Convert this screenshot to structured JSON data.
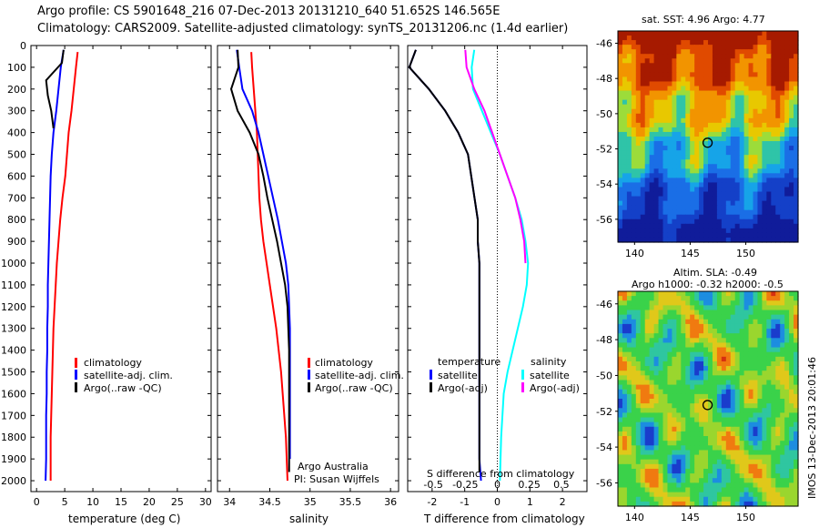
{
  "header": {
    "line1": "Argo profile: CS 5901648_216 07-Dec-2013 20131210_640 51.652S 146.565E",
    "line2": "Climatology: CARS2009. Satellite-adjusted climatology: synTS_20131206.nc (1.4d earlier)"
  },
  "colors": {
    "climatology": "#ff0000",
    "satellite": "#0000ff",
    "argo": "#000000",
    "argo_adj_salinity": "#ff00ff",
    "satellite_salinity": "#00ffff"
  },
  "panels": {
    "temperature": {
      "xlabel": "temperature (deg C)",
      "xticks": [
        "0",
        "5",
        "10",
        "15",
        "20",
        "25",
        "30"
      ],
      "legend": [
        "climatology",
        "satellite-adj. clim.",
        "Argo(..raw -QC)"
      ]
    },
    "salinity": {
      "xlabel": "salinity",
      "xticks": [
        "34",
        "34.5",
        "35",
        "35.5",
        "36"
      ],
      "legend": [
        "climatology",
        "satellite-adj. clim.",
        "Argo(..raw -QC)"
      ],
      "credit1": "Argo Australia",
      "credit2": "PI: Susan Wijffels"
    },
    "difference": {
      "xlabel": "T difference from climatology",
      "top_label": "S difference from climatology",
      "xticks_t": [
        "-2",
        "-1",
        "0",
        "1",
        "2"
      ],
      "xticks_s": [
        "-0.5",
        "-0.25",
        "0",
        "0.25",
        "0.5"
      ],
      "legend_t_title": "temperature",
      "legend_s_title": "salinity",
      "legend_t": [
        "satellite",
        "Argo(-adj)"
      ],
      "legend_s": [
        "satellite",
        "Argo(-adj)"
      ]
    },
    "depth_ticks": [
      "0",
      "100",
      "200",
      "300",
      "400",
      "500",
      "600",
      "700",
      "800",
      "900",
      "1000",
      "1100",
      "1200",
      "1300",
      "1400",
      "1500",
      "1600",
      "1700",
      "1800",
      "1900",
      "2000"
    ]
  },
  "maps": {
    "sst_title": "sat. SST: 4.96 Argo: 4.77",
    "sla_title1": "Altim. SLA: -0.49",
    "sla_title2": "Argo h1000: -0.32 h2000: -0.5",
    "lat_ticks": [
      "-46",
      "-48",
      "-50",
      "-52",
      "-54",
      "-56"
    ],
    "lon_ticks": [
      "140",
      "145",
      "150"
    ],
    "stamp": "IMOS 13-Dec-2013 20:01:46"
  },
  "chart_data": [
    {
      "type": "line",
      "title": "",
      "xlabel": "temperature (deg C)",
      "ylabel": "",
      "xlim": [
        -1,
        31
      ],
      "ylim": [
        2050,
        0
      ],
      "series": [
        {
          "name": "climatology",
          "x": [
            7.3,
            7.0,
            6.6,
            6.2,
            5.7,
            5.4,
            5.1,
            4.6,
            4.2,
            3.9,
            3.6,
            3.4,
            3.2,
            3.0,
            2.9,
            2.8,
            2.7,
            2.6,
            2.5,
            2.5,
            2.5
          ],
          "y": [
            30,
            100,
            200,
            300,
            400,
            500,
            600,
            700,
            800,
            900,
            1000,
            1100,
            1200,
            1300,
            1400,
            1500,
            1600,
            1700,
            1800,
            1900,
            2000
          ]
        },
        {
          "name": "satellite-adj. clim.",
          "x": [
            4.8,
            4.3,
            3.9,
            3.5,
            3.0,
            2.7,
            2.5,
            2.4,
            2.3,
            2.2,
            2.1,
            2.0,
            2.0,
            1.9,
            1.9,
            1.8,
            1.8,
            1.7,
            1.7,
            1.7,
            1.6
          ],
          "y": [
            20,
            100,
            200,
            300,
            400,
            500,
            600,
            700,
            800,
            900,
            1000,
            1100,
            1200,
            1300,
            1400,
            1500,
            1600,
            1700,
            1800,
            1900,
            2000
          ]
        },
        {
          "name": "Argo(..raw -QC)",
          "x": [
            4.8,
            4.5,
            1.7,
            2.0,
            2.6,
            3.0
          ],
          "y": [
            20,
            80,
            160,
            230,
            300,
            380
          ]
        }
      ]
    },
    {
      "type": "line",
      "title": "",
      "xlabel": "salinity",
      "ylabel": "",
      "xlim": [
        33.85,
        36.1
      ],
      "ylim": [
        2050,
        0
      ],
      "series": [
        {
          "name": "climatology",
          "x": [
            34.27,
            34.28,
            34.3,
            34.32,
            34.34,
            34.35,
            34.36,
            34.37,
            34.39,
            34.42,
            34.46,
            34.5,
            34.54,
            34.58,
            34.61,
            34.64,
            34.66,
            34.68,
            34.7,
            34.71,
            34.72
          ],
          "y": [
            30,
            100,
            200,
            300,
            400,
            500,
            600,
            700,
            800,
            900,
            1000,
            1100,
            1200,
            1300,
            1400,
            1500,
            1600,
            1700,
            1800,
            1900,
            2000
          ]
        },
        {
          "name": "satellite-adj. clim.",
          "x": [
            34.09,
            34.12,
            34.16,
            34.28,
            34.36,
            34.42,
            34.48,
            34.54,
            34.6,
            34.65,
            34.7,
            34.73,
            34.74,
            34.75,
            34.75,
            34.75,
            34.75,
            34.75,
            34.75,
            34.75
          ],
          "y": [
            20,
            100,
            200,
            300,
            400,
            500,
            600,
            700,
            800,
            900,
            1000,
            1100,
            1200,
            1300,
            1400,
            1500,
            1600,
            1700,
            1800,
            1900
          ]
        },
        {
          "name": "Argo(..raw -QC)",
          "x": [
            34.1,
            34.11,
            34.02,
            34.1,
            34.25,
            34.36,
            34.42,
            34.47,
            34.53,
            34.59,
            34.64,
            34.69,
            34.72,
            34.73,
            34.74,
            34.74,
            34.74,
            34.74,
            34.74,
            34.74,
            34.74
          ],
          "y": [
            20,
            100,
            200,
            300,
            400,
            500,
            600,
            700,
            800,
            900,
            1000,
            1100,
            1200,
            1300,
            1400,
            1500,
            1600,
            1700,
            1800,
            1900,
            1960
          ]
        }
      ]
    },
    {
      "type": "line",
      "title": "",
      "xlabel": "T difference from climatology",
      "ylabel": "",
      "xlim": [
        -2.75,
        2.75
      ],
      "ylim": [
        2050,
        0
      ],
      "series": [
        {
          "name": "satellite",
          "x": [
            -2.5,
            -2.7,
            -2.1,
            -1.6,
            -1.2,
            -0.9,
            -0.8,
            -0.7,
            -0.6,
            -0.6,
            -0.55,
            -0.55,
            -0.55,
            -0.55,
            -0.55,
            -0.55,
            -0.5
          ],
          "y": [
            20,
            100,
            200,
            300,
            400,
            500,
            600,
            700,
            800,
            900,
            1000,
            1200,
            1400,
            1600,
            1800,
            1900,
            2000
          ]
        },
        {
          "name": "Argo(-adj)",
          "x": [
            -2.5,
            -2.7,
            -2.1,
            -1.6,
            -1.2,
            -0.9,
            -0.8,
            -0.7,
            -0.6,
            -0.6,
            -0.55,
            -0.55,
            -0.55,
            -0.55,
            -0.55,
            -0.55
          ],
          "y": [
            20,
            100,
            200,
            300,
            400,
            500,
            600,
            700,
            800,
            900,
            1000,
            1200,
            1400,
            1600,
            1800,
            1960
          ]
        }
      ]
    },
    {
      "type": "line",
      "title": "",
      "xlabel": "S difference from climatology",
      "ylabel": "",
      "xlim": [
        -0.7,
        0.7
      ],
      "ylim": [
        2050,
        0
      ],
      "series": [
        {
          "name": "satellite",
          "x": [
            -0.18,
            -0.2,
            -0.19,
            -0.12,
            -0.05,
            0.02,
            0.08,
            0.14,
            0.19,
            0.22,
            0.24,
            0.23,
            0.2,
            0.16,
            0.12,
            0.08,
            0.05,
            0.03,
            0.02
          ],
          "y": [
            20,
            100,
            200,
            300,
            400,
            500,
            600,
            700,
            800,
            900,
            1000,
            1100,
            1200,
            1300,
            1400,
            1500,
            1600,
            1800,
            2000
          ]
        },
        {
          "name": "Argo(-adj)",
          "x": [
            -0.25,
            -0.24,
            -0.18,
            -0.1,
            -0.04,
            0.02,
            0.08,
            0.14,
            0.18,
            0.21,
            0.22
          ],
          "y": [
            20,
            100,
            200,
            300,
            400,
            500,
            600,
            700,
            800,
            900,
            1000
          ]
        }
      ]
    }
  ]
}
